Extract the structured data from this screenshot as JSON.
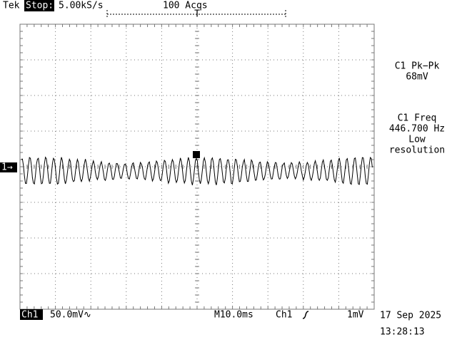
{
  "header": {
    "brand": "Tek",
    "mode": "Stop:",
    "sample_rate": "5.00kS/s",
    "acquisitions": "100 Acqs",
    "trigger_marker": "T"
  },
  "channel_marker": "1→",
  "measurements": [
    {
      "lines": [
        "C1 Pk−Pk",
        "68mV"
      ]
    },
    {
      "lines": [
        "C1 Freq",
        "446.700 Hz",
        "Low",
        "resolution"
      ]
    }
  ],
  "footer": {
    "channel": "Ch1",
    "scale": "50.0mV∿",
    "timebase": "M10.0ms",
    "trigger_source": "Ch1",
    "trigger_level": "1mV",
    "date": "17 Sep 2025",
    "time": "13:28:13"
  }
}
